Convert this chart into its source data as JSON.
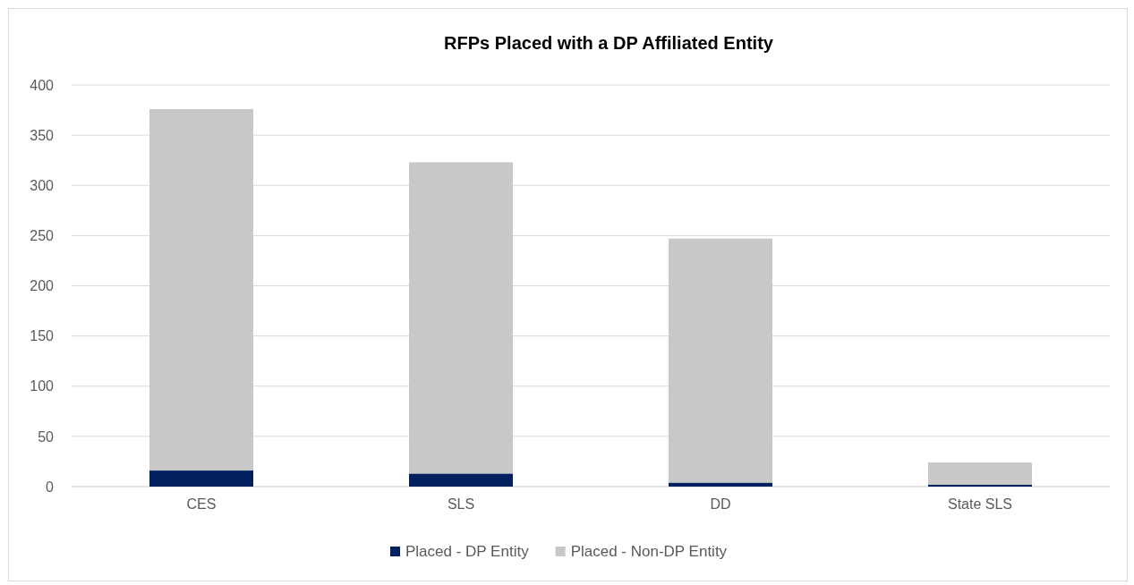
{
  "chart_data": {
    "type": "bar",
    "title": "RFPs Placed with a DP Affiliated Entity",
    "categories": [
      "CES",
      "SLS",
      "DD",
      "State SLS"
    ],
    "series": [
      {
        "name": "Placed - DP Entity",
        "color": "#002060",
        "values": [
          16,
          13,
          4,
          2
        ]
      },
      {
        "name": "Placed - Non-DP Entity",
        "color": "#c8c8c8",
        "values": [
          360,
          310,
          243,
          22
        ]
      }
    ],
    "stacked": true,
    "ylim": [
      0,
      400
    ],
    "yticks": [
      0,
      50,
      100,
      150,
      200,
      250,
      300,
      350,
      400
    ],
    "grid": "y",
    "legend": "bottom"
  }
}
